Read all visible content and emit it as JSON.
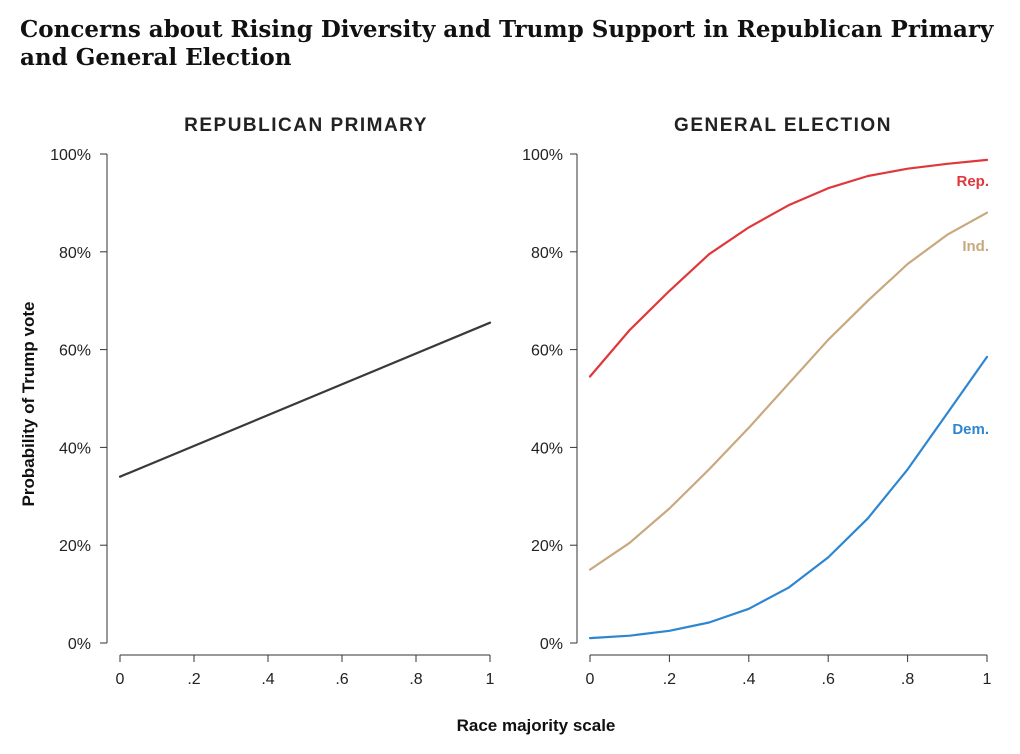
{
  "title": "Concerns about Rising Diversity and Trump Support in Republican Primary and General Election",
  "colors": {
    "primary_line": "#3a3a3a",
    "rep": "#e0373a",
    "ind": "#c8a97e",
    "dem": "#2e86d0",
    "axis": "#333333"
  },
  "chart_data": [
    {
      "type": "line",
      "title": "REPUBLICAN PRIMARY",
      "xlabel": "Race majority scale",
      "ylabel": "Probability of Trump vote",
      "xlim": [
        0,
        1
      ],
      "ylim": [
        0,
        100
      ],
      "x_ticks": [
        0,
        0.2,
        0.4,
        0.6,
        0.8,
        1
      ],
      "x_tick_labels": [
        "0",
        ".2",
        ".4",
        ".6",
        ".8",
        "1"
      ],
      "y_ticks": [
        0,
        20,
        40,
        60,
        80,
        100
      ],
      "y_tick_labels": [
        "0%",
        "20%",
        "40%",
        "60%",
        "80%",
        "100%"
      ],
      "grid": false,
      "series": [
        {
          "name": "",
          "color": "#3a3a3a",
          "x": [
            0,
            1
          ],
          "y": [
            34,
            65.5
          ]
        }
      ]
    },
    {
      "type": "line",
      "title": "GENERAL ELECTION",
      "xlabel": "Race majority scale",
      "ylabel": "",
      "xlim": [
        0,
        1
      ],
      "ylim": [
        0,
        100
      ],
      "x_ticks": [
        0,
        0.2,
        0.4,
        0.6,
        0.8,
        1
      ],
      "x_tick_labels": [
        "0",
        ".2",
        ".4",
        ".6",
        ".8",
        "1"
      ],
      "y_ticks": [
        0,
        20,
        40,
        60,
        80,
        100
      ],
      "y_tick_labels": [
        "0%",
        "20%",
        "40%",
        "60%",
        "80%",
        "100%"
      ],
      "grid": false,
      "series": [
        {
          "name": "Rep.",
          "color": "#e0373a",
          "x": [
            0,
            0.1,
            0.2,
            0.3,
            0.4,
            0.5,
            0.6,
            0.7,
            0.8,
            0.9,
            1
          ],
          "y": [
            54.5,
            64,
            72,
            79.5,
            85,
            89.5,
            93,
            95.5,
            97,
            98,
            98.8
          ]
        },
        {
          "name": "Ind.",
          "color": "#c8a97e",
          "x": [
            0,
            0.1,
            0.2,
            0.3,
            0.4,
            0.5,
            0.6,
            0.7,
            0.8,
            0.9,
            1
          ],
          "y": [
            15,
            20.5,
            27.5,
            35.5,
            44,
            53,
            62,
            70,
            77.5,
            83.5,
            88
          ]
        },
        {
          "name": "Dem.",
          "color": "#2e86d0",
          "x": [
            0,
            0.1,
            0.2,
            0.3,
            0.4,
            0.5,
            0.6,
            0.7,
            0.8,
            0.9,
            1
          ],
          "y": [
            1,
            1.5,
            2.5,
            4.2,
            7,
            11.3,
            17.5,
            25.5,
            35.5,
            47,
            58.5
          ]
        }
      ]
    }
  ]
}
